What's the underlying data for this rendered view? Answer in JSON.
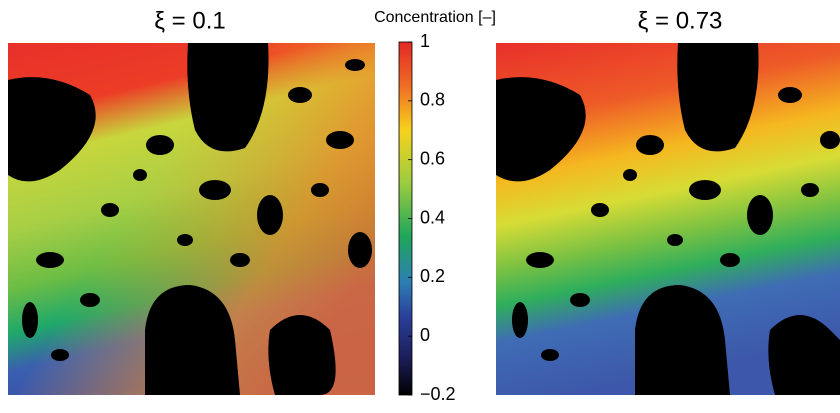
{
  "chart_data": {
    "type": "heatmap",
    "panels": [
      {
        "title": "ξ = 0.1"
      },
      {
        "title": "ξ = 0.73"
      }
    ],
    "colorbar": {
      "label": "Concentration [–]",
      "lim": [
        -0.2,
        1
      ],
      "ticks": [
        1,
        0.8,
        0.6,
        0.4,
        0.2,
        0,
        {
          "value": -0.2,
          "label": "−0.2"
        }
      ]
    }
  }
}
